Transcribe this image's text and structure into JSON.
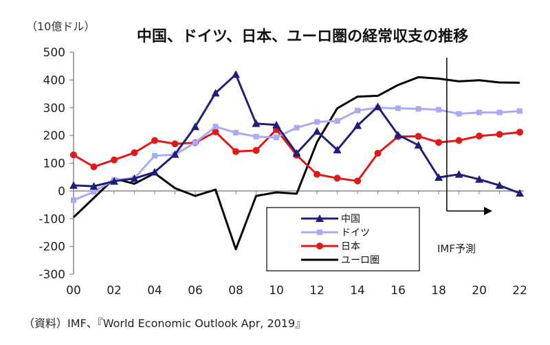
{
  "chart_data": {
    "type": "line",
    "title": "中国、ドイツ、日本、ユーロ圏の経常収支の推移",
    "ylabel": "（10億ドル）",
    "source": "（資料）IMF、『World Economic Outlook Apr, 2019』",
    "forecast_label": "IMF予測",
    "forecast_start_x": 18.4,
    "x": [
      0,
      1,
      2,
      3,
      4,
      5,
      6,
      7,
      8,
      9,
      10,
      11,
      12,
      13,
      14,
      15,
      16,
      17,
      18,
      19,
      20,
      21,
      22
    ],
    "x_tick_labels": [
      "00",
      "02",
      "04",
      "06",
      "08",
      "10",
      "12",
      "14",
      "16",
      "18",
      "20",
      "22"
    ],
    "x_tick_values": [
      0,
      2,
      4,
      6,
      8,
      10,
      12,
      14,
      16,
      18,
      20,
      22
    ],
    "xlim": [
      0,
      22.2
    ],
    "ylim": [
      -300,
      500
    ],
    "y_ticks": [
      500,
      400,
      300,
      200,
      100,
      0,
      -100,
      -200,
      -300
    ],
    "grid": false,
    "legend_position": "bottom-center",
    "series": [
      {
        "name": "中国",
        "color": "#1f1f7a",
        "marker": "triangle",
        "values": [
          20,
          17,
          35,
          45,
          68,
          132,
          232,
          353,
          420,
          243,
          238,
          136,
          215,
          148,
          236,
          304,
          202,
          165,
          49,
          60,
          42,
          20,
          -8
        ]
      },
      {
        "name": "ドイツ",
        "color": "#a9a9f5",
        "marker": "square",
        "values": [
          -33,
          -3,
          40,
          46,
          127,
          131,
          174,
          232,
          210,
          196,
          193,
          228,
          249,
          252,
          290,
          300,
          298,
          296,
          293,
          278,
          283,
          283,
          288
        ]
      },
      {
        "name": "日本",
        "color": "#e01818",
        "marker": "circle",
        "values": [
          130,
          87,
          112,
          138,
          182,
          170,
          174,
          213,
          142,
          146,
          221,
          129,
          60,
          46,
          36,
          136,
          196,
          197,
          175,
          182,
          198,
          204,
          212
        ]
      },
      {
        "name": "ユーロ圏",
        "color": "#000000",
        "marker": "none",
        "values": [
          -95,
          -25,
          45,
          26,
          64,
          10,
          -18,
          5,
          -210,
          -18,
          -5,
          -10,
          176,
          298,
          340,
          343,
          382,
          410,
          405,
          395,
          399,
          391,
          390
        ]
      }
    ]
  }
}
